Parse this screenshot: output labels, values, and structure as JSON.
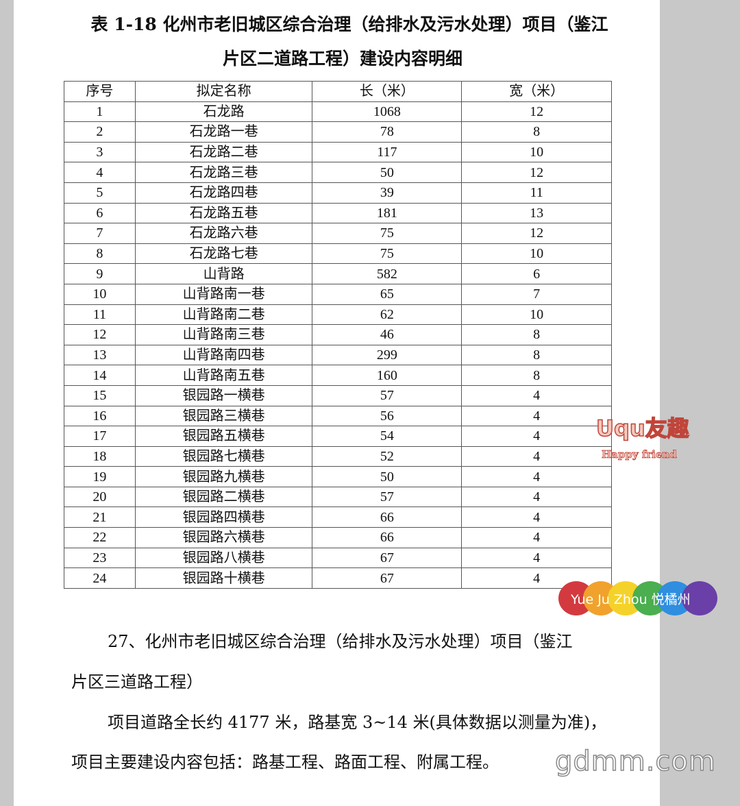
{
  "title": {
    "line1": "表 1-18  化州市老旧城区综合治理（给排水及污水处理）项目（鉴江",
    "line2": "片区二道路工程）建设内容明细"
  },
  "table": {
    "headers": [
      "序号",
      "拟定名称",
      "长（米）",
      "宽（米）"
    ],
    "rows": [
      [
        "1",
        "石龙路",
        "1068",
        "12"
      ],
      [
        "2",
        "石龙路一巷",
        "78",
        "8"
      ],
      [
        "3",
        "石龙路二巷",
        "117",
        "10"
      ],
      [
        "4",
        "石龙路三巷",
        "50",
        "12"
      ],
      [
        "5",
        "石龙路四巷",
        "39",
        "11"
      ],
      [
        "6",
        "石龙路五巷",
        "181",
        "13"
      ],
      [
        "7",
        "石龙路六巷",
        "75",
        "12"
      ],
      [
        "8",
        "石龙路七巷",
        "75",
        "10"
      ],
      [
        "9",
        "山背路",
        "582",
        "6"
      ],
      [
        "10",
        "山背路南一巷",
        "65",
        "7"
      ],
      [
        "11",
        "山背路南二巷",
        "62",
        "10"
      ],
      [
        "12",
        "山背路南三巷",
        "46",
        "8"
      ],
      [
        "13",
        "山背路南四巷",
        "299",
        "8"
      ],
      [
        "14",
        "山背路南五巷",
        "160",
        "8"
      ],
      [
        "15",
        "银园路一横巷",
        "57",
        "4"
      ],
      [
        "16",
        "银园路三横巷",
        "56",
        "4"
      ],
      [
        "17",
        "银园路五横巷",
        "54",
        "4"
      ],
      [
        "18",
        "银园路七横巷",
        "52",
        "4"
      ],
      [
        "19",
        "银园路九横巷",
        "50",
        "4"
      ],
      [
        "20",
        "银园路二横巷",
        "57",
        "4"
      ],
      [
        "21",
        "银园路四横巷",
        "66",
        "4"
      ],
      [
        "22",
        "银园路六横巷",
        "66",
        "4"
      ],
      [
        "23",
        "银园路八横巷",
        "67",
        "4"
      ],
      [
        "24",
        "银园路十横巷",
        "67",
        "4"
      ]
    ]
  },
  "body": {
    "p1_line1": "27、化州市老旧城区综合治理（给排水及污水处理）项目（鉴江",
    "p1_line2": "片区三道路工程）",
    "p2_line1": "项目道路全长约 4177 米，路基宽 3~14 米(具体数据以测量为准)，",
    "p2_line2": "项目主要建设内容包括：路基工程、路面工程、附属工程。"
  },
  "watermarks": {
    "uqu": "Uqu友趣",
    "uqu_sub": "Happy friend",
    "yjz": "Yue Ju Zhou 悦橘州",
    "gdmm": "gdmm.com",
    "yjz_colors": [
      "#d33a3f",
      "#f0a22c",
      "#f5d22a",
      "#4bae4f",
      "#2f8ee0",
      "#6a3fa8"
    ]
  }
}
